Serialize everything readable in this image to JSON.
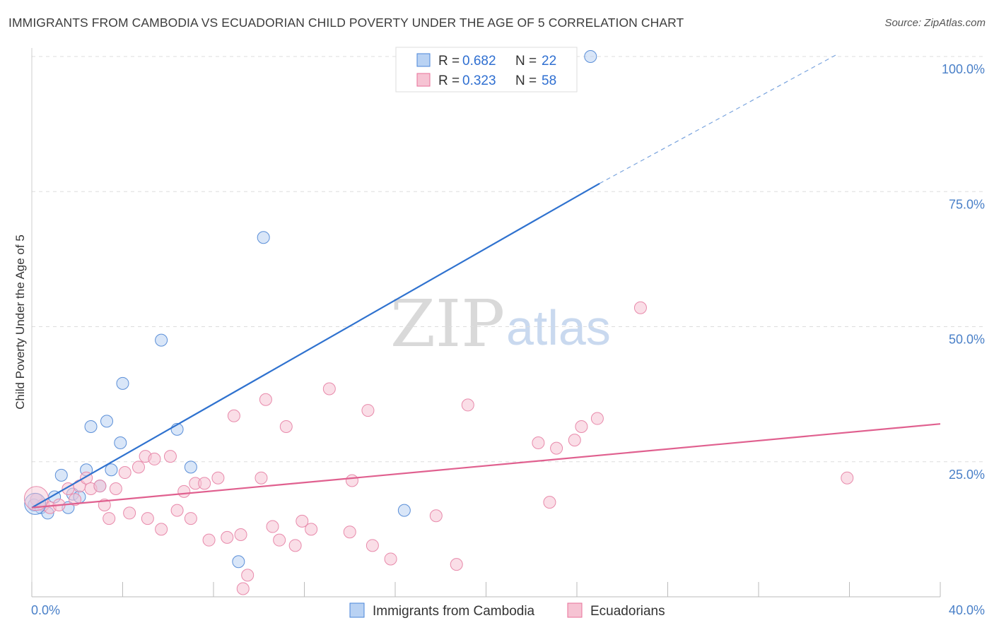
{
  "title": "IMMIGRANTS FROM CAMBODIA VS ECUADORIAN CHILD POVERTY UNDER THE AGE OF 5 CORRELATION CHART",
  "source": "Source: ZipAtlas.com",
  "watermark": {
    "zip": "ZIP",
    "atlas": "atlas"
  },
  "colors": {
    "blue": "#4a86d8",
    "blue_fill": "#b9d2f3",
    "pink": "#e8709a",
    "pink_fill": "#f6c3d3",
    "tick_label": "#4a80c8",
    "grid": "#dddddd"
  },
  "legend": {
    "series": [
      {
        "r_label": "R =",
        "r_value": "0.682",
        "n_label": "N =",
        "n_value": "22"
      },
      {
        "r_label": "R =",
        "r_value": "0.323",
        "n_label": "N =",
        "n_value": "58"
      }
    ]
  },
  "chart_data": {
    "type": "scatter",
    "xlabel": "",
    "ylabel": "Child Poverty Under the Age of 5",
    "xlim": [
      0,
      40
    ],
    "ylim": [
      0,
      100
    ],
    "x_tick_labels": [
      "0.0%",
      "40.0%"
    ],
    "y_ticks": [
      25,
      50,
      75,
      100
    ],
    "y_tick_labels": [
      "25.0%",
      "50.0%",
      "75.0%",
      "100.0%"
    ],
    "grid": true,
    "legend_position": "top-center",
    "series": [
      {
        "name": "Immigrants from Cambodia",
        "color": "#4a86d8",
        "points": [
          [
            0.1,
            17.0
          ],
          [
            0.4,
            16.5
          ],
          [
            0.7,
            15.5
          ],
          [
            1.0,
            18.5
          ],
          [
            1.3,
            22.5
          ],
          [
            1.6,
            16.5
          ],
          [
            1.8,
            19.0
          ],
          [
            2.1,
            18.5
          ],
          [
            2.4,
            23.5
          ],
          [
            2.6,
            31.5
          ],
          [
            3.0,
            20.5
          ],
          [
            3.3,
            32.5
          ],
          [
            3.5,
            23.5
          ],
          [
            3.9,
            28.5
          ],
          [
            4.0,
            39.5
          ],
          [
            5.7,
            47.5
          ],
          [
            6.4,
            31.0
          ],
          [
            7.0,
            24.0
          ],
          [
            9.1,
            6.5
          ],
          [
            10.2,
            66.5
          ],
          [
            16.4,
            16.0
          ],
          [
            24.6,
            100.0
          ]
        ],
        "trend": {
          "x": [
            0,
            25
          ],
          "y": [
            16.5,
            76.5
          ],
          "dashed_to": [
            35.5,
            100.5
          ]
        }
      },
      {
        "name": "Ecuadorians",
        "color": "#e8709a",
        "points": [
          [
            0.2,
            18.0
          ],
          [
            0.5,
            17.0
          ],
          [
            0.8,
            16.5
          ],
          [
            1.2,
            17.0
          ],
          [
            1.6,
            20.0
          ],
          [
            1.9,
            18.0
          ],
          [
            2.1,
            20.5
          ],
          [
            2.4,
            22.0
          ],
          [
            2.6,
            20.0
          ],
          [
            3.0,
            20.5
          ],
          [
            3.2,
            17.0
          ],
          [
            3.4,
            14.5
          ],
          [
            3.7,
            20.0
          ],
          [
            4.1,
            23.0
          ],
          [
            4.3,
            15.5
          ],
          [
            4.7,
            24.0
          ],
          [
            5.0,
            26.0
          ],
          [
            5.1,
            14.5
          ],
          [
            5.4,
            25.5
          ],
          [
            5.7,
            12.5
          ],
          [
            6.1,
            26.0
          ],
          [
            6.4,
            16.0
          ],
          [
            6.7,
            19.5
          ],
          [
            7.0,
            14.5
          ],
          [
            7.2,
            21.0
          ],
          [
            7.6,
            21.0
          ],
          [
            7.8,
            10.5
          ],
          [
            8.2,
            22.0
          ],
          [
            8.6,
            11.0
          ],
          [
            8.9,
            33.5
          ],
          [
            9.2,
            11.5
          ],
          [
            9.5,
            4.0
          ],
          [
            9.3,
            1.5
          ],
          [
            10.1,
            22.0
          ],
          [
            10.3,
            36.5
          ],
          [
            10.6,
            13.0
          ],
          [
            10.9,
            10.5
          ],
          [
            11.2,
            31.5
          ],
          [
            11.6,
            9.5
          ],
          [
            11.9,
            14.0
          ],
          [
            12.3,
            12.5
          ],
          [
            13.1,
            38.5
          ],
          [
            14.0,
            12.0
          ],
          [
            14.1,
            21.5
          ],
          [
            14.8,
            34.5
          ],
          [
            15.0,
            9.5
          ],
          [
            15.8,
            7.0
          ],
          [
            17.8,
            15.0
          ],
          [
            18.7,
            6.0
          ],
          [
            19.2,
            35.5
          ],
          [
            22.3,
            28.5
          ],
          [
            22.8,
            17.5
          ],
          [
            23.1,
            27.5
          ],
          [
            23.9,
            29.0
          ],
          [
            24.2,
            31.5
          ],
          [
            24.9,
            33.0
          ],
          [
            26.8,
            53.5
          ],
          [
            35.9,
            22.0
          ]
        ],
        "trend": {
          "x": [
            0,
            40
          ],
          "y": [
            16.5,
            32.0
          ]
        }
      }
    ]
  }
}
